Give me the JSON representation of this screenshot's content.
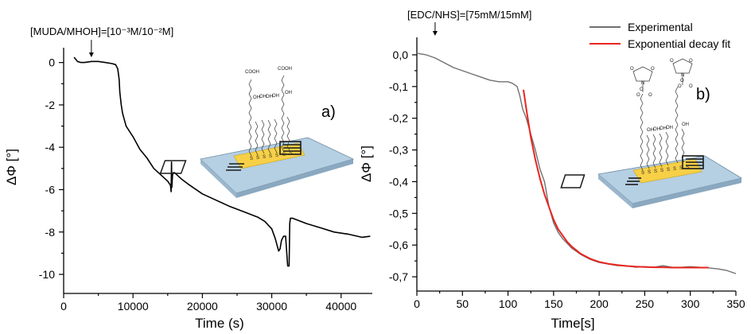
{
  "chart_data": [
    {
      "type": "line",
      "panel_label": "a)",
      "xlabel": "Time (s)",
      "ylabel": "ΔΦ [°]",
      "xlim": [
        0,
        44500
      ],
      "ylim": [
        -10.9,
        0.7
      ],
      "x_ticks": [
        0,
        10000,
        20000,
        30000,
        40000
      ],
      "x_tick_labels": [
        "0",
        "10000",
        "20000",
        "30000",
        "40000"
      ],
      "y_ticks": [
        0,
        -2,
        -4,
        -6,
        -8,
        -10
      ],
      "y_tick_labels": [
        "0",
        "-2",
        "-4",
        "-6",
        "-8",
        "-10"
      ],
      "annotation": {
        "text": "[MUDA/MHOH]=[10⁻³M/10⁻²M]",
        "x": 4000
      },
      "series": [
        {
          "color": "#000000",
          "x": [
            1500,
            2000,
            2500,
            3000,
            4000,
            5000,
            6000,
            7000,
            7500,
            7800,
            8000,
            8100,
            8300,
            8500,
            9000,
            10000,
            11000,
            12000,
            13000,
            14000,
            15000,
            15400,
            15500,
            15550,
            15600,
            15700,
            15800,
            16000,
            17000,
            18000,
            20000,
            22000,
            24000,
            26000,
            28000,
            29000,
            30000,
            30500,
            31000,
            31200,
            31400,
            31700,
            32000,
            32300,
            32500,
            32600,
            32700,
            33000,
            35000,
            37000,
            39000,
            41000,
            43000,
            44200
          ],
          "y": [
            0.25,
            0.05,
            0.0,
            0.0,
            0.05,
            0.05,
            0.0,
            -0.05,
            -0.1,
            -0.3,
            -0.8,
            -1.4,
            -2.0,
            -2.4,
            -3.0,
            -3.5,
            -4.1,
            -4.5,
            -5.0,
            -5.3,
            -5.6,
            -5.8,
            -6.1,
            -4.7,
            -5.9,
            -5.3,
            -5.2,
            -5.2,
            -5.5,
            -5.75,
            -6.2,
            -6.5,
            -6.8,
            -7.05,
            -7.3,
            -7.5,
            -7.85,
            -8.3,
            -8.9,
            -8.8,
            -8.4,
            -8.2,
            -8.2,
            -9.6,
            -9.6,
            -7.6,
            -7.35,
            -7.35,
            -7.6,
            -7.8,
            -8.0,
            -8.1,
            -8.25,
            -8.2
          ]
        }
      ]
    },
    {
      "type": "line",
      "panel_label": "b)",
      "xlabel": "Time[s]",
      "ylabel": "ΔΦ [°]",
      "xlim": [
        0,
        350
      ],
      "ylim": [
        -0.745,
        0.055
      ],
      "x_ticks": [
        0,
        50,
        100,
        150,
        200,
        250,
        300,
        350
      ],
      "x_tick_labels": [
        "0",
        "50",
        "100",
        "150",
        "200",
        "250",
        "300",
        "350"
      ],
      "y_ticks": [
        0.0,
        -0.1,
        -0.2,
        -0.3,
        -0.4,
        -0.5,
        -0.6,
        -0.7
      ],
      "y_tick_labels": [
        "0,0",
        "-0,1",
        "-0,2",
        "-0,3",
        "-0,4",
        "-0,5",
        "-0,6",
        "-0,7"
      ],
      "annotation": {
        "text": "[EDC/NHS]=[75mM/15mM]",
        "x": 20
      },
      "legend_position": "top-right",
      "series": [
        {
          "name": "Experimental",
          "color": "#707070",
          "x": [
            0,
            10,
            20,
            30,
            40,
            50,
            60,
            70,
            80,
            90,
            100,
            105,
            110,
            113,
            116,
            120,
            125,
            130,
            135,
            140,
            145,
            150,
            155,
            160,
            170,
            180,
            190,
            200,
            210,
            220,
            230,
            240,
            250,
            260,
            270,
            280,
            290,
            300,
            310,
            320,
            330,
            340,
            345,
            350
          ],
          "y": [
            0.005,
            0.0,
            -0.01,
            -0.025,
            -0.04,
            -0.05,
            -0.06,
            -0.07,
            -0.08,
            -0.085,
            -0.085,
            -0.09,
            -0.1,
            -0.13,
            -0.17,
            -0.2,
            -0.25,
            -0.3,
            -0.36,
            -0.4,
            -0.48,
            -0.53,
            -0.56,
            -0.58,
            -0.61,
            -0.63,
            -0.645,
            -0.655,
            -0.66,
            -0.665,
            -0.665,
            -0.67,
            -0.668,
            -0.67,
            -0.665,
            -0.67,
            -0.67,
            -0.668,
            -0.67,
            -0.672,
            -0.675,
            -0.68,
            -0.685,
            -0.69
          ]
        },
        {
          "name": "Exponential decay fit",
          "color": "#e8251f",
          "x": [
            117,
            120,
            125,
            130,
            135,
            140,
            145,
            150,
            155,
            160,
            165,
            170,
            180,
            190,
            200,
            210,
            220,
            230,
            240,
            250,
            260,
            270,
            280,
            290,
            300,
            310,
            320
          ],
          "y": [
            -0.11,
            -0.17,
            -0.26,
            -0.33,
            -0.39,
            -0.44,
            -0.48,
            -0.52,
            -0.55,
            -0.57,
            -0.59,
            -0.605,
            -0.628,
            -0.643,
            -0.653,
            -0.659,
            -0.663,
            -0.666,
            -0.668,
            -0.669,
            -0.67,
            -0.67,
            -0.671,
            -0.671,
            -0.671,
            -0.671,
            -0.671
          ]
        }
      ]
    }
  ],
  "inset_a": {
    "chem_labels": [
      "COOH",
      "COOH",
      "OH",
      "OH",
      "OH",
      "OH",
      "OH",
      "S",
      "S",
      "S",
      "S",
      "S",
      "S",
      "S"
    ]
  },
  "inset_b": {
    "chem_labels": [
      "O",
      "O",
      "N",
      "O",
      "O",
      "O",
      "O",
      "N",
      "O",
      "O",
      "O",
      "O",
      "OH",
      "OH",
      "OH",
      "OH",
      "OH",
      "S",
      "S",
      "S",
      "S",
      "S",
      "S",
      "S",
      "S"
    ]
  }
}
